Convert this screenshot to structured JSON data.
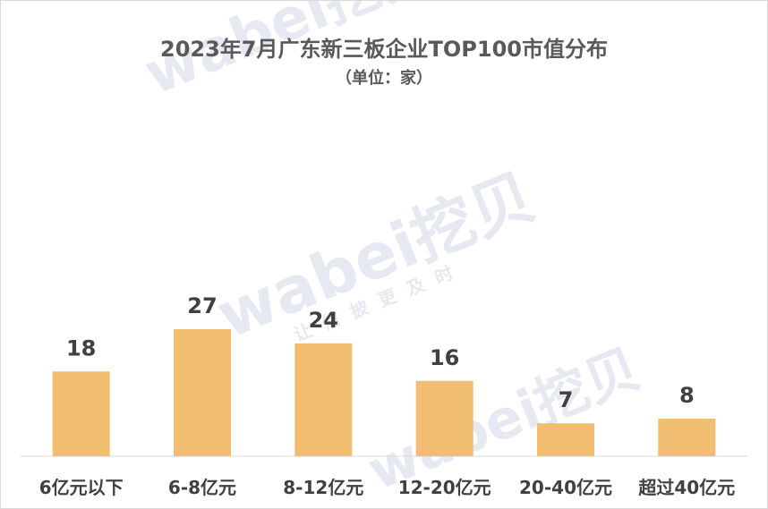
{
  "chart_data": {
    "type": "bar",
    "title": "2023年7月广东新三板企业TOP100市值分布",
    "subtitle": "（单位：家）",
    "categories": [
      "6亿元以下",
      "6-8亿元",
      "8-12亿元",
      "12-20亿元",
      "20-40亿元",
      "超过40亿元"
    ],
    "values": [
      18,
      27,
      24,
      16,
      7,
      8
    ],
    "ylim": [
      0,
      30
    ],
    "grid": false,
    "legend": "none",
    "bar_color": "#f0bd71",
    "label_color": "#404040",
    "axis_color": "#d9d9d9"
  },
  "watermark": {
    "brand": "wabei挖贝",
    "slogan": "让信披更及时"
  }
}
